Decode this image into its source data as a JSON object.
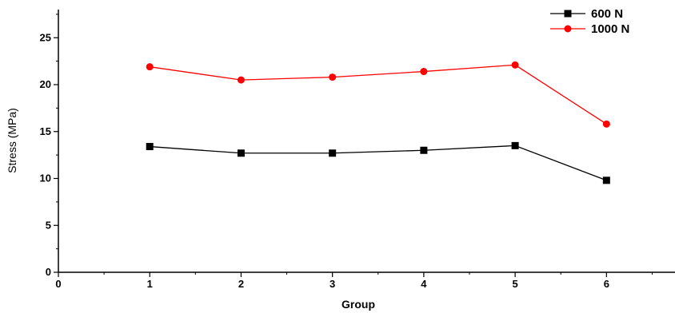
{
  "chart_data": {
    "type": "line",
    "title": "",
    "xlabel": "Group",
    "ylabel": "Stress (MPa)",
    "xlim": [
      0,
      6.75
    ],
    "ylim": [
      0,
      28
    ],
    "xticks": [
      0,
      1,
      2,
      3,
      4,
      5,
      6
    ],
    "yticks": [
      0,
      5,
      10,
      15,
      20,
      25
    ],
    "grid": false,
    "legend_position": "top-right",
    "x": [
      1,
      2,
      3,
      4,
      5,
      6
    ],
    "series": [
      {
        "name": "600 N",
        "color": "#000000",
        "marker": "square",
        "values": [
          13.4,
          12.7,
          12.7,
          13.0,
          13.5,
          9.8
        ]
      },
      {
        "name": "1000 N",
        "color": "#ff0000",
        "marker": "circle",
        "values": [
          21.9,
          20.5,
          20.8,
          21.4,
          22.1,
          15.8
        ]
      }
    ]
  }
}
